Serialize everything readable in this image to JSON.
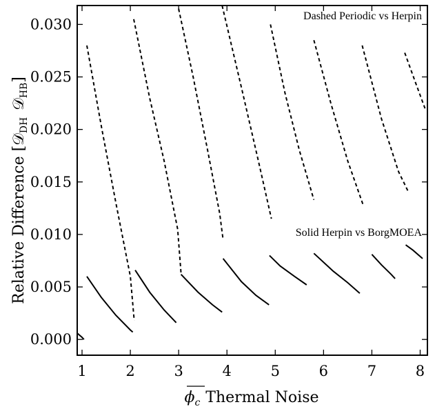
{
  "chart_data": {
    "type": "line",
    "xlabel": "Thermal Noise",
    "xlabel_symbol": "ϕ",
    "xlabel_symbol_sub": "c",
    "ylabel_main": "Relative Difference [",
    "ylabel_d1": "𝒟",
    "ylabel_d1_sub": "DH",
    "ylabel_d2": "𝒟",
    "ylabel_d2_sub": "HB",
    "ylabel_close": "]",
    "xlim": [
      0.9,
      8.15
    ],
    "ylim": [
      -0.0015,
      0.0318
    ],
    "xticks": [
      1,
      2,
      3,
      4,
      5,
      6,
      7,
      8
    ],
    "yticks": [
      0.0,
      0.005,
      0.01,
      0.015,
      0.02,
      0.025,
      0.03
    ],
    "ytick_labels": [
      "0.000",
      "0.005",
      "0.010",
      "0.015",
      "0.020",
      "0.025",
      "0.030"
    ],
    "grid": false,
    "annotations": [
      "Dashed Periodic vs Herpin",
      "Solid Herpin vs BorgMOEA"
    ],
    "series": [
      {
        "style": "dashed",
        "segments": [
          [
            [
              1.1,
              0.028
            ],
            [
              1.4,
              0.0203
            ],
            [
              1.7,
              0.013
            ],
            [
              2.0,
              0.006
            ],
            [
              2.08,
              0.0018
            ]
          ],
          [
            [
              2.07,
              0.0305
            ],
            [
              2.4,
              0.023
            ],
            [
              2.7,
              0.017
            ],
            [
              2.98,
              0.0105
            ],
            [
              3.05,
              0.0063
            ]
          ],
          [
            [
              3.0,
              0.0315
            ],
            [
              3.3,
              0.025
            ],
            [
              3.6,
              0.018
            ],
            [
              3.85,
              0.012
            ],
            [
              3.92,
              0.0095
            ]
          ],
          [
            [
              3.9,
              0.0318
            ],
            [
              4.3,
              0.024
            ],
            [
              4.65,
              0.017
            ],
            [
              4.92,
              0.0115
            ]
          ],
          [
            [
              4.9,
              0.03
            ],
            [
              5.2,
              0.0235
            ],
            [
              5.5,
              0.018
            ],
            [
              5.8,
              0.0133
            ]
          ],
          [
            [
              5.8,
              0.0285
            ],
            [
              6.15,
              0.0225
            ],
            [
              6.5,
              0.017
            ],
            [
              6.82,
              0.0128
            ]
          ],
          [
            [
              6.8,
              0.028
            ],
            [
              7.2,
              0.021
            ],
            [
              7.55,
              0.016
            ],
            [
              7.75,
              0.0141
            ]
          ],
          [
            [
              7.68,
              0.0273
            ],
            [
              7.9,
              0.0245
            ],
            [
              8.1,
              0.022
            ]
          ]
        ]
      },
      {
        "style": "solid",
        "segments": [
          [
            [
              0.9,
              0.0006
            ],
            [
              1.0,
              0.0002
            ],
            [
              1.04,
              0.0
            ]
          ],
          [
            [
              1.1,
              0.006
            ],
            [
              1.4,
              0.004
            ],
            [
              1.7,
              0.0023
            ],
            [
              2.0,
              0.0009
            ],
            [
              2.05,
              0.0007
            ]
          ],
          [
            [
              2.1,
              0.0066
            ],
            [
              2.4,
              0.0045
            ],
            [
              2.7,
              0.0028
            ],
            [
              2.95,
              0.0016
            ]
          ],
          [
            [
              3.05,
              0.0062
            ],
            [
              3.4,
              0.0045
            ],
            [
              3.7,
              0.0033
            ],
            [
              3.9,
              0.0026
            ]
          ],
          [
            [
              3.92,
              0.0077
            ],
            [
              4.3,
              0.0055
            ],
            [
              4.6,
              0.0042
            ],
            [
              4.87,
              0.0033
            ]
          ],
          [
            [
              4.88,
              0.008
            ],
            [
              5.1,
              0.007
            ],
            [
              5.4,
              0.006
            ],
            [
              5.65,
              0.0052
            ]
          ],
          [
            [
              5.8,
              0.0082
            ],
            [
              6.2,
              0.0065
            ],
            [
              6.5,
              0.0054
            ],
            [
              6.75,
              0.0044
            ]
          ],
          [
            [
              7.0,
              0.0081
            ],
            [
              7.2,
              0.0071
            ],
            [
              7.4,
              0.0062
            ],
            [
              7.48,
              0.0058
            ]
          ],
          [
            [
              7.7,
              0.009
            ],
            [
              7.85,
              0.0085
            ],
            [
              8.05,
              0.0077
            ]
          ]
        ]
      }
    ]
  }
}
